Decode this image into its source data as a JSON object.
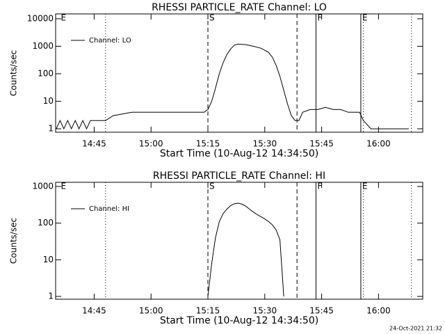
{
  "timestamp": "24-Oct-2021 21:32",
  "chart_data": [
    {
      "type": "line",
      "title": "RHESSI PARTICLE_RATE Channel: LO",
      "xlabel": "Start Time (10-Aug-12 14:34:50)",
      "ylabel": "Counts/sec",
      "log_y": true,
      "ylim": [
        0.75,
        15000
      ],
      "yticks": [
        1,
        10,
        100,
        1000,
        10000
      ],
      "xlim": [
        "14:34:50",
        "16:11:40"
      ],
      "xticks": [
        "14:45",
        "15:00",
        "15:15",
        "15:30",
        "15:45",
        "16:00"
      ],
      "x": [
        "14:35",
        "14:36",
        "14:37",
        "14:38",
        "14:39",
        "14:40",
        "14:41",
        "14:42",
        "14:43",
        "14:44",
        "14:46",
        "14:48",
        "14:50",
        "14:55",
        "15:00",
        "15:05",
        "15:10",
        "15:14",
        "15:15",
        "15:16",
        "15:17",
        "15:18",
        "15:19",
        "15:20",
        "15:21",
        "15:22",
        "15:23",
        "15:25",
        "15:27",
        "15:29",
        "15:31",
        "15:32",
        "15:33",
        "15:34",
        "15:35",
        "15:36",
        "15:37",
        "15:38",
        "15:39",
        "15:40",
        "15:42",
        "15:44",
        "15:46",
        "15:48",
        "15:50",
        "15:52",
        "15:55",
        "15:56",
        "15:58",
        "16:00",
        "16:03",
        "16:05",
        "16:08"
      ],
      "series": [
        {
          "name": "Channel: LO",
          "color": "#000000",
          "values": [
            1,
            2,
            1,
            2,
            1,
            2,
            1,
            2,
            1,
            2,
            2,
            2,
            3,
            4,
            4,
            4,
            4,
            4,
            5,
            10,
            30,
            100,
            250,
            500,
            800,
            1100,
            1200,
            1150,
            1000,
            850,
            600,
            400,
            200,
            80,
            25,
            8,
            3,
            2,
            2,
            4,
            5,
            5,
            6,
            5,
            5,
            4,
            4,
            2,
            1,
            1,
            1,
            1,
            1
          ]
        }
      ],
      "markers": [
        {
          "x": "14:35:50",
          "label": "E"
        },
        {
          "x": "14:48:00",
          "style": "dotted"
        },
        {
          "x": "15:15:00",
          "style": "dashed",
          "label": "S"
        },
        {
          "x": "15:38:30",
          "style": "dashed"
        },
        {
          "x": "15:43:30",
          "style": "solid",
          "label": "F"
        },
        {
          "x": "15:55:20",
          "style": "solid",
          "label": "E"
        },
        {
          "x": "15:56:00",
          "style": "dotted"
        },
        {
          "x": "16:08:40",
          "style": "dotted"
        }
      ]
    },
    {
      "type": "line",
      "title": "RHESSI PARTICLE_RATE Channel: HI",
      "xlabel": "Start Time (10-Aug-12 14:34:50)",
      "ylabel": "Counts/sec",
      "log_y": true,
      "ylim": [
        0.84,
        1300
      ],
      "yticks": [
        1,
        10,
        100,
        1000
      ],
      "xlim": [
        "14:34:50",
        "16:11:40"
      ],
      "xticks": [
        "14:45",
        "15:00",
        "15:15",
        "15:30",
        "15:45",
        "16:00"
      ],
      "x": [
        "15:15",
        "15:16",
        "15:17",
        "15:18",
        "15:19",
        "15:20",
        "15:21",
        "15:22",
        "15:23",
        "15:24",
        "15:25",
        "15:26",
        "15:27",
        "15:28",
        "15:29",
        "15:30",
        "15:31",
        "15:32",
        "15:33",
        "15:34",
        "15:35"
      ],
      "series": [
        {
          "name": "Channel: HI",
          "color": "#000000",
          "values": [
            1,
            8,
            40,
            110,
            180,
            240,
            300,
            340,
            350,
            330,
            290,
            240,
            200,
            170,
            150,
            130,
            110,
            90,
            65,
            35,
            1
          ]
        }
      ],
      "markers": [
        {
          "x": "14:35:50",
          "label": "E"
        },
        {
          "x": "14:48:00",
          "style": "dotted"
        },
        {
          "x": "15:15:00",
          "style": "dashed",
          "label": "S"
        },
        {
          "x": "15:38:30",
          "style": "dashed"
        },
        {
          "x": "15:43:30",
          "style": "solid",
          "label": "F"
        },
        {
          "x": "15:55:20",
          "style": "solid",
          "label": "E"
        },
        {
          "x": "15:56:00",
          "style": "dotted"
        },
        {
          "x": "16:08:40",
          "style": "dotted"
        }
      ]
    }
  ]
}
